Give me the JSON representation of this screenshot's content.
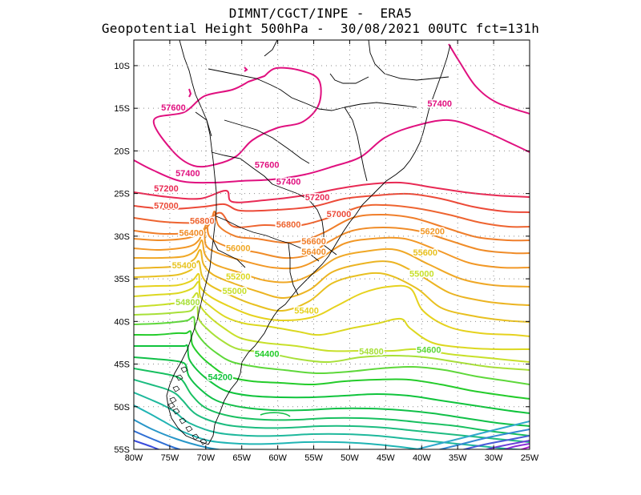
{
  "header": {
    "line1": "DIMNT/CGCT/INPE -  ERA5",
    "line2": "Geopotential Height 500hPa -  30/08/2021 00UTC fct=131h"
  },
  "map": {
    "lon_range": [
      -80,
      -25
    ],
    "lat_range": [
      -55,
      -7
    ],
    "grid": "dotted",
    "lon_ticks": [
      "80W",
      "75W",
      "70W",
      "65W",
      "60W",
      "55W",
      "50W",
      "45W",
      "40W",
      "35W",
      "30W",
      "25W"
    ],
    "lat_ticks": [
      "10S",
      "15S",
      "20S",
      "25S",
      "30S",
      "35S",
      "40S",
      "45S",
      "50S",
      "55S"
    ],
    "contour_labels": [
      {
        "text": "57600",
        "lon": -74.5,
        "lat": -15.0,
        "color": "#e0107f"
      },
      {
        "text": "57600",
        "lon": -61.5,
        "lat": -21.7,
        "color": "#e0107f"
      },
      {
        "text": "57400",
        "lon": -37.5,
        "lat": -14.5,
        "color": "#e0107f"
      },
      {
        "text": "57400",
        "lon": -72.5,
        "lat": -22.7,
        "color": "#e0107f"
      },
      {
        "text": "57400",
        "lon": -58.5,
        "lat": -23.7,
        "color": "#e0107f"
      },
      {
        "text": "57200",
        "lon": -75.5,
        "lat": -24.5,
        "color": "#e82a54"
      },
      {
        "text": "57200",
        "lon": -54.5,
        "lat": -25.5,
        "color": "#e82a54"
      },
      {
        "text": "57000",
        "lon": -75.5,
        "lat": -26.5,
        "color": "#ec4a38"
      },
      {
        "text": "57000",
        "lon": -51.5,
        "lat": -27.5,
        "color": "#ec4a38"
      },
      {
        "text": "56800",
        "lon": -70.5,
        "lat": -28.3,
        "color": "#ee6430"
      },
      {
        "text": "56800",
        "lon": -58.5,
        "lat": -28.7,
        "color": "#ee6430"
      },
      {
        "text": "56600",
        "lon": -55.0,
        "lat": -30.7,
        "color": "#f07e2a"
      },
      {
        "text": "56400",
        "lon": -72.0,
        "lat": -29.7,
        "color": "#f08c28"
      },
      {
        "text": "56400",
        "lon": -55.0,
        "lat": -31.9,
        "color": "#f08c28"
      },
      {
        "text": "56200",
        "lon": -38.5,
        "lat": -29.5,
        "color": "#f29826"
      },
      {
        "text": "56000",
        "lon": -65.5,
        "lat": -31.5,
        "color": "#f0a826"
      },
      {
        "text": "55600",
        "lon": -39.5,
        "lat": -32.0,
        "color": "#e8c020"
      },
      {
        "text": "55400",
        "lon": -73.0,
        "lat": -33.5,
        "color": "#e8c420"
      },
      {
        "text": "55400",
        "lon": -56.0,
        "lat": -38.8,
        "color": "#e6d21e"
      },
      {
        "text": "55200",
        "lon": -65.5,
        "lat": -34.8,
        "color": "#dcd820"
      },
      {
        "text": "55000",
        "lon": -40.0,
        "lat": -34.5,
        "color": "#c8e02a"
      },
      {
        "text": "55000",
        "lon": -66.0,
        "lat": -36.5,
        "color": "#c8e02a"
      },
      {
        "text": "54800",
        "lon": -72.5,
        "lat": -37.8,
        "color": "#a8e038"
      },
      {
        "text": "54800",
        "lon": -47.0,
        "lat": -43.6,
        "color": "#a8e038"
      },
      {
        "text": "54600",
        "lon": -39.0,
        "lat": -43.4,
        "color": "#5ed83a"
      },
      {
        "text": "54400",
        "lon": -61.5,
        "lat": -43.9,
        "color": "#24cc2a"
      },
      {
        "text": "54200",
        "lon": -68.0,
        "lat": -46.6,
        "color": "#10c43c"
      }
    ]
  }
}
